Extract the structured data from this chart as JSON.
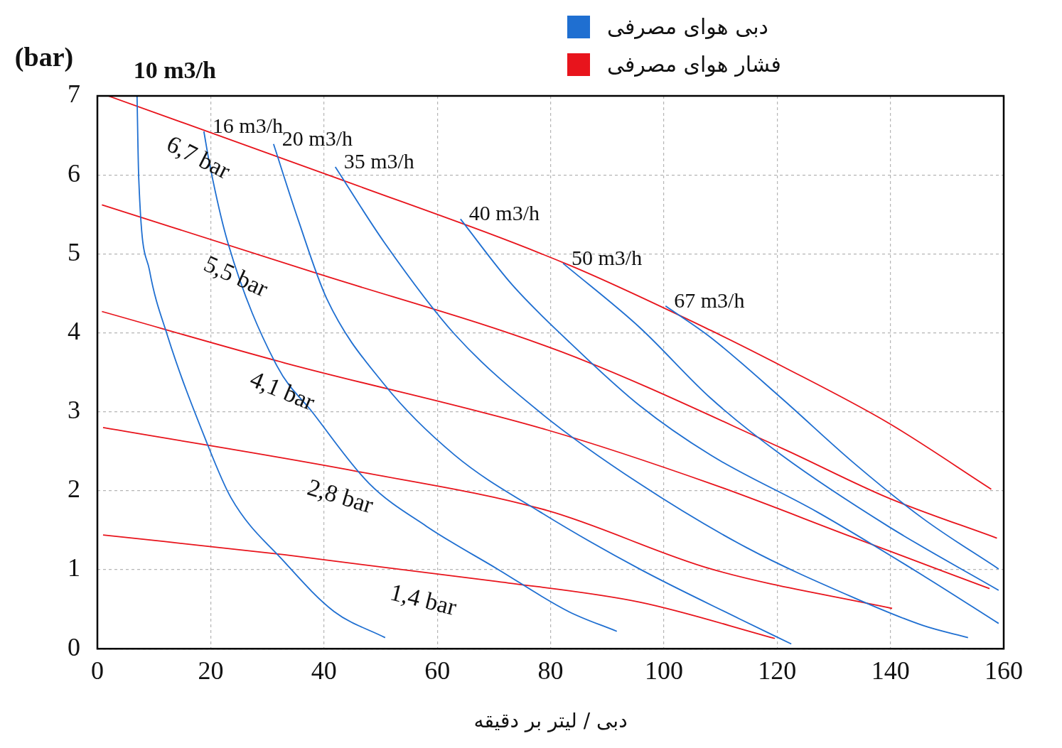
{
  "chart_data": {
    "type": "line",
    "xlabel": "دبی / لیتر بر دقیقه",
    "ylabel": "(bar)",
    "xlim": [
      0,
      160
    ],
    "ylim": [
      0,
      7
    ],
    "xticks": [
      0,
      20,
      40,
      60,
      80,
      100,
      120,
      140,
      160
    ],
    "yticks": [
      0,
      1,
      2,
      3,
      4,
      5,
      6,
      7
    ],
    "grid": true,
    "legend": "top",
    "marker": "none",
    "annotations": [
      "دبی هوای مصرفی",
      "فشار هوای مصرفی"
    ],
    "series": [
      {
        "name": "10 m3/h",
        "color": "#1f6fd1",
        "x": [
          7.0,
          7.3,
          9.2,
          12.3,
          19.2,
          23.6,
          33,
          41.8,
          50.8
        ],
        "values": [
          7.0,
          5.96,
          4.79,
          3.98,
          2.63,
          1.91,
          1.1,
          0.47,
          0.14
        ]
      },
      {
        "name": "16 m3/h",
        "color": "#1f6fd1",
        "x": [
          18.8,
          19.8,
          23.0,
          31.7,
          38,
          48,
          58.1,
          70.6,
          83.2,
          91.7
        ],
        "values": [
          6.55,
          6.14,
          5.15,
          3.58,
          2.99,
          2.09,
          1.55,
          1.01,
          0.47,
          0.22
        ]
      },
      {
        "name": "20 m3/h",
        "color": "#1f6fd1",
        "x": [
          31.1,
          35.5,
          40.5,
          50.6,
          63.1,
          78.2,
          95.7,
          113.3,
          122.5
        ],
        "values": [
          6.39,
          5.42,
          4.43,
          3.35,
          2.45,
          1.73,
          1.01,
          0.38,
          0.06
        ]
      },
      {
        "name": "35 m3/h",
        "color": "#1f6fd1",
        "x": [
          42,
          50.6,
          63.1,
          78.2,
          95.7,
          114.6,
          133.4,
          145.9,
          153.7
        ],
        "values": [
          6.1,
          5.15,
          3.98,
          2.99,
          2.09,
          1.28,
          0.65,
          0.29,
          0.14
        ]
      },
      {
        "name": "40 m3/h",
        "color": "#1f6fd1",
        "x": [
          64.1,
          73.2,
          83.2,
          95.7,
          108.3,
          127.1,
          145.9,
          159.1
        ],
        "values": [
          5.44,
          4.61,
          3.89,
          3.08,
          2.45,
          1.73,
          0.92,
          0.32
        ]
      },
      {
        "name": "50 m3/h",
        "color": "#1f6fd1",
        "x": [
          82.2,
          95.7,
          108.3,
          120.8,
          139.6,
          159.1
        ],
        "values": [
          4.88,
          4.07,
          3.17,
          2.45,
          1.55,
          0.74
        ]
      },
      {
        "name": "67 m3/h",
        "color": "#1f6fd1",
        "x": [
          100.3,
          108.3,
          120.8,
          133.4,
          145.9,
          159.1
        ],
        "values": [
          4.34,
          3.94,
          3.17,
          2.36,
          1.64,
          1.01
        ]
      },
      {
        "name": "6,7 bar",
        "color": "#e8141c",
        "x": [
          1.9,
          43.0,
          83.2,
          108.3,
          120.8,
          139.6,
          157.8
        ],
        "values": [
          7.0,
          5.94,
          4.86,
          4.03,
          3.58,
          2.86,
          2.02
        ]
      },
      {
        "name": "5,5 bar",
        "color": "#e8141c",
        "x": [
          0.8,
          38,
          81.9,
          120.8,
          139.6,
          158.8
        ],
        "values": [
          5.62,
          4.77,
          3.76,
          2.54,
          1.91,
          1.4
        ]
      },
      {
        "name": "4,1 bar",
        "color": "#e8141c",
        "x": [
          0.8,
          33,
          79.4,
          108.3,
          133.4,
          157.5
        ],
        "values": [
          4.27,
          3.62,
          2.77,
          2.09,
          1.41,
          0.76
        ]
      },
      {
        "name": "2,8 bar",
        "color": "#e8141c",
        "x": [
          1.0,
          45.5,
          79.4,
          108.3,
          140.3
        ],
        "values": [
          2.8,
          2.25,
          1.75,
          1.01,
          0.51
        ]
      },
      {
        "name": "1,4 bar",
        "color": "#e8141c",
        "x": [
          1.0,
          33,
          70.6,
          95.7,
          119.6
        ],
        "values": [
          1.44,
          1.19,
          0.85,
          0.59,
          0.13
        ]
      }
    ]
  }
}
